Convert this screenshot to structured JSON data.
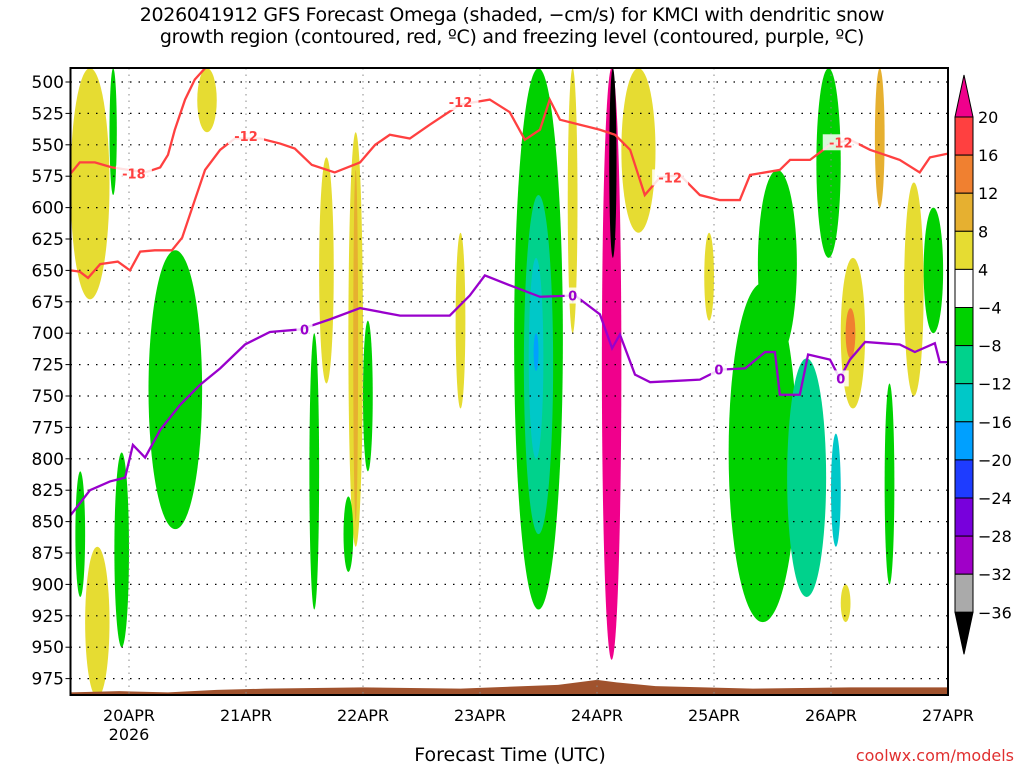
{
  "chart_data": {
    "type": "heatmap",
    "title_line1": "2026041912 GFS Forecast Omega (shaded, −cm/s) for KMCI with dendritic snow",
    "title_line2": "growth region (contoured, red, ºC) and freezing level (contoured, purple, ºC)",
    "xlabel": "Forecast Time (UTC)",
    "credit": "coolwx.com/models",
    "x_units": "forecast hour from 2026041912",
    "xlim": [
      0,
      180
    ],
    "ylim_hpa": [
      489,
      990
    ],
    "y_ticks": [
      "500",
      "525",
      "550",
      "575",
      "600",
      "625",
      "650",
      "675",
      "700",
      "725",
      "750",
      "775",
      "800",
      "825",
      "850",
      "875",
      "900",
      "925",
      "950",
      "975"
    ],
    "x_ticks": [
      {
        "hour": 12,
        "label": "20APR",
        "sub": "2026"
      },
      {
        "hour": 36,
        "label": "21APR"
      },
      {
        "hour": 60,
        "label": "22APR"
      },
      {
        "hour": 84,
        "label": "23APR"
      },
      {
        "hour": 108,
        "label": "24APR"
      },
      {
        "hour": 132,
        "label": "25APR"
      },
      {
        "hour": 156,
        "label": "26APR"
      },
      {
        "hour": 180,
        "label": "27APR"
      }
    ],
    "grid": true,
    "colorbar": {
      "labels": [
        "20",
        "16",
        "12",
        "8",
        "4",
        "−4",
        "−8",
        "−12",
        "−16",
        "−20",
        "−24",
        "−28",
        "−32",
        "−36"
      ],
      "classes": [
        {
          "id": "gt20",
          "color": "#f0008c"
        },
        {
          "id": "16to20",
          "color": "#ff4040"
        },
        {
          "id": "12to16",
          "color": "#f08030"
        },
        {
          "id": "8to12",
          "color": "#e6b030"
        },
        {
          "id": "4to8",
          "color": "#e6dc32"
        },
        {
          "id": "m4to4",
          "color": "#ffffff"
        },
        {
          "id": "m8tom4",
          "color": "#00d200"
        },
        {
          "id": "m12tom8",
          "color": "#00d28c"
        },
        {
          "id": "m16tom12",
          "color": "#00c8c8"
        },
        {
          "id": "m20tom16",
          "color": "#00a0ff"
        },
        {
          "id": "m24tom20",
          "color": "#1e3cff"
        },
        {
          "id": "m28tom24",
          "color": "#7800dc"
        },
        {
          "id": "m32tom28",
          "color": "#a000c8"
        },
        {
          "id": "m36tom32",
          "color": "#aaaaaa"
        },
        {
          "id": "ltm36",
          "color": "#000000"
        }
      ]
    },
    "omega_regions": [
      {
        "cls": "4to8",
        "h": [
          0,
          8
        ],
        "p": [
          489,
          673
        ]
      },
      {
        "cls": "4to8",
        "h": [
          3,
          8
        ],
        "p": [
          870,
          990
        ]
      },
      {
        "cls": "m8tom4",
        "h": [
          16,
          27
        ],
        "p": [
          634,
          856
        ]
      },
      {
        "cls": "m8tom4",
        "h": [
          1,
          3
        ],
        "p": [
          810,
          910
        ]
      },
      {
        "cls": "m8tom4",
        "h": [
          9,
          12
        ],
        "p": [
          795,
          950
        ]
      },
      {
        "cls": "m8tom4",
        "h": [
          8,
          9.5
        ],
        "p": [
          489,
          590
        ]
      },
      {
        "cls": "4to8",
        "h": [
          26,
          30
        ],
        "p": [
          489,
          540
        ]
      },
      {
        "cls": "4to8",
        "h": [
          51,
          54
        ],
        "p": [
          560,
          740
        ]
      },
      {
        "cls": "4to8",
        "h": [
          57,
          60
        ],
        "p": [
          540,
          870
        ]
      },
      {
        "cls": "8to12",
        "h": [
          58,
          59
        ],
        "p": [
          570,
          850
        ]
      },
      {
        "cls": "m8tom4",
        "h": [
          60,
          62
        ],
        "p": [
          690,
          810
        ]
      },
      {
        "cls": "m8tom4",
        "h": [
          56,
          58
        ],
        "p": [
          830,
          890
        ]
      },
      {
        "cls": "m8tom4",
        "h": [
          49,
          51
        ],
        "p": [
          700,
          920
        ]
      },
      {
        "cls": "4to8",
        "h": [
          79,
          81
        ],
        "p": [
          620,
          760
        ]
      },
      {
        "cls": "m8tom4",
        "h": [
          91,
          101
        ],
        "p": [
          489,
          920
        ]
      },
      {
        "cls": "m12tom8",
        "h": [
          93,
          99
        ],
        "p": [
          590,
          860
        ]
      },
      {
        "cls": "m16tom12",
        "h": [
          94,
          97
        ],
        "p": [
          640,
          800
        ]
      },
      {
        "cls": "m20tom16",
        "h": [
          95,
          96
        ],
        "p": [
          700,
          730
        ]
      },
      {
        "cls": "4to8",
        "h": [
          102,
          104
        ],
        "p": [
          489,
          700
        ]
      },
      {
        "cls": "gt20",
        "h": [
          109,
          113
        ],
        "p": [
          489,
          960
        ]
      },
      {
        "cls": "ltm36",
        "h": [
          110.5,
          112
        ],
        "p": [
          489,
          640
        ]
      },
      {
        "cls": "4to8",
        "h": [
          113,
          120
        ],
        "p": [
          489,
          620
        ]
      },
      {
        "cls": "4to8",
        "h": [
          130,
          132
        ],
        "p": [
          620,
          690
        ]
      },
      {
        "cls": "m8tom4",
        "h": [
          135,
          149
        ],
        "p": [
          660,
          930
        ]
      },
      {
        "cls": "m12tom8",
        "h": [
          147,
          155
        ],
        "p": [
          720,
          910
        ]
      },
      {
        "cls": "m8tom4",
        "h": [
          141,
          149
        ],
        "p": [
          570,
          720
        ]
      },
      {
        "cls": "m8tom4",
        "h": [
          153,
          158
        ],
        "p": [
          489,
          640
        ]
      },
      {
        "cls": "m16tom12",
        "h": [
          156,
          158
        ],
        "p": [
          780,
          870
        ]
      },
      {
        "cls": "4to8",
        "h": [
          158,
          163
        ],
        "p": [
          640,
          760
        ]
      },
      {
        "cls": "12to16",
        "h": [
          159,
          161
        ],
        "p": [
          680,
          720
        ]
      },
      {
        "cls": "8to12",
        "h": [
          165,
          167
        ],
        "p": [
          489,
          600
        ]
      },
      {
        "cls": "4to8",
        "h": [
          171,
          175
        ],
        "p": [
          580,
          750
        ]
      },
      {
        "cls": "m8tom4",
        "h": [
          167,
          169
        ],
        "p": [
          740,
          900
        ]
      },
      {
        "cls": "m8tom4",
        "h": [
          175,
          179
        ],
        "p": [
          600,
          700
        ]
      },
      {
        "cls": "4to8",
        "h": [
          158,
          160
        ],
        "p": [
          900,
          930
        ]
      }
    ],
    "series": [
      {
        "name": "-18C contour",
        "color": "#ff4040",
        "points": [
          [
            0,
            573
          ],
          [
            1.9,
            564
          ],
          [
            5,
            564
          ],
          [
            8.5,
            568
          ],
          [
            15.3,
            572
          ],
          [
            18.4,
            568
          ],
          [
            20,
            558
          ],
          [
            21.4,
            538
          ],
          [
            23.5,
            514
          ],
          [
            25.5,
            498
          ],
          [
            27.6,
            489
          ]
        ]
      },
      {
        "name": "-12C contour",
        "color": "#ff4040",
        "points": [
          [
            0,
            650
          ],
          [
            1.9,
            651
          ],
          [
            3.6,
            656
          ],
          [
            6.1,
            645
          ],
          [
            9.7,
            643
          ],
          [
            12.2,
            650
          ],
          [
            14.3,
            635
          ],
          [
            17.3,
            634
          ],
          [
            20.8,
            634
          ],
          [
            22.9,
            624
          ],
          [
            25.5,
            594
          ],
          [
            27.6,
            570
          ],
          [
            30.7,
            554
          ],
          [
            33.7,
            545
          ],
          [
            38.9,
            545
          ],
          [
            43,
            549
          ],
          [
            46,
            553
          ],
          [
            49.5,
            566
          ],
          [
            54.2,
            572
          ],
          [
            59.4,
            564
          ],
          [
            62.5,
            550
          ],
          [
            65.5,
            542
          ],
          [
            69.6,
            545
          ],
          [
            73.7,
            534
          ],
          [
            79.9,
            518
          ],
          [
            86,
            514
          ],
          [
            90.1,
            524
          ],
          [
            93.2,
            546
          ],
          [
            96.3,
            538
          ],
          [
            98.3,
            514
          ],
          [
            100.4,
            530
          ],
          [
            104.5,
            534
          ],
          [
            108.6,
            538
          ],
          [
            111.7,
            542
          ],
          [
            114.8,
            554
          ],
          [
            117.8,
            590
          ],
          [
            120.9,
            576
          ],
          [
            125,
            574
          ],
          [
            129.1,
            590
          ],
          [
            133.2,
            594
          ],
          [
            137.3,
            594
          ],
          [
            139.4,
            574
          ],
          [
            145.5,
            570
          ],
          [
            147.6,
            562
          ],
          [
            151.7,
            562
          ],
          [
            155.8,
            550
          ],
          [
            159.9,
            546
          ],
          [
            164,
            554
          ],
          [
            170.1,
            562
          ],
          [
            174.2,
            572
          ],
          [
            176.3,
            560
          ],
          [
            180,
            557
          ]
        ]
      },
      {
        "name": "0C freezing level",
        "color": "#9900cc",
        "points": [
          [
            0,
            845
          ],
          [
            4,
            825
          ],
          [
            8.1,
            818
          ],
          [
            11.2,
            815
          ],
          [
            12.8,
            789
          ],
          [
            15.3,
            799
          ],
          [
            18.4,
            777
          ],
          [
            22.5,
            757
          ],
          [
            26.6,
            741
          ],
          [
            30.7,
            728
          ],
          [
            35.8,
            709
          ],
          [
            40.9,
            699
          ],
          [
            47.1,
            697
          ],
          [
            53.2,
            689
          ],
          [
            59.4,
            680
          ],
          [
            67.6,
            686
          ],
          [
            77.8,
            686
          ],
          [
            81.9,
            670
          ],
          [
            85,
            654
          ],
          [
            90.2,
            662
          ],
          [
            96.3,
            671
          ],
          [
            103.5,
            670
          ],
          [
            108.6,
            685
          ],
          [
            111.1,
            712
          ],
          [
            112.7,
            701
          ],
          [
            115.8,
            733
          ],
          [
            118.9,
            739
          ],
          [
            129.1,
            737
          ],
          [
            133.2,
            729
          ],
          [
            138.4,
            728
          ],
          [
            142.5,
            715
          ],
          [
            144.5,
            715
          ],
          [
            145.5,
            749
          ],
          [
            149.6,
            749
          ],
          [
            151.3,
            717
          ],
          [
            155.8,
            721
          ],
          [
            157.8,
            736
          ],
          [
            159.9,
            721
          ],
          [
            163,
            707
          ],
          [
            170.1,
            709
          ],
          [
            173.2,
            715
          ],
          [
            177.3,
            708
          ],
          [
            178.3,
            723
          ],
          [
            180,
            723
          ]
        ]
      }
    ],
    "contour_labels": [
      {
        "text": "-18",
        "h": 13,
        "p": 573,
        "color": "#ff4040"
      },
      {
        "text": "-12",
        "h": 36,
        "p": 543,
        "color": "#ff4040"
      },
      {
        "text": "-12",
        "h": 80,
        "p": 516,
        "color": "#ff4040"
      },
      {
        "text": "-12",
        "h": 123,
        "p": 576,
        "color": "#ff4040"
      },
      {
        "text": "-12",
        "h": 158,
        "p": 548,
        "color": "#ff4040"
      },
      {
        "text": "0",
        "h": 48,
        "p": 697,
        "color": "#9900cc"
      },
      {
        "text": "0",
        "h": 103,
        "p": 670,
        "color": "#9900cc"
      },
      {
        "text": "0",
        "h": 133,
        "p": 729,
        "color": "#9900cc"
      },
      {
        "text": "0",
        "h": 158,
        "p": 736,
        "color": "#9900cc"
      }
    ],
    "ground": {
      "color": "#a0522d",
      "points": [
        [
          0,
          986
        ],
        [
          10,
          985
        ],
        [
          20,
          986
        ],
        [
          30,
          984
        ],
        [
          40,
          983
        ],
        [
          60,
          982
        ],
        [
          80,
          983
        ],
        [
          100,
          980
        ],
        [
          108,
          976
        ],
        [
          112,
          978
        ],
        [
          120,
          981
        ],
        [
          140,
          983
        ],
        [
          160,
          982
        ],
        [
          180,
          982
        ]
      ]
    }
  }
}
